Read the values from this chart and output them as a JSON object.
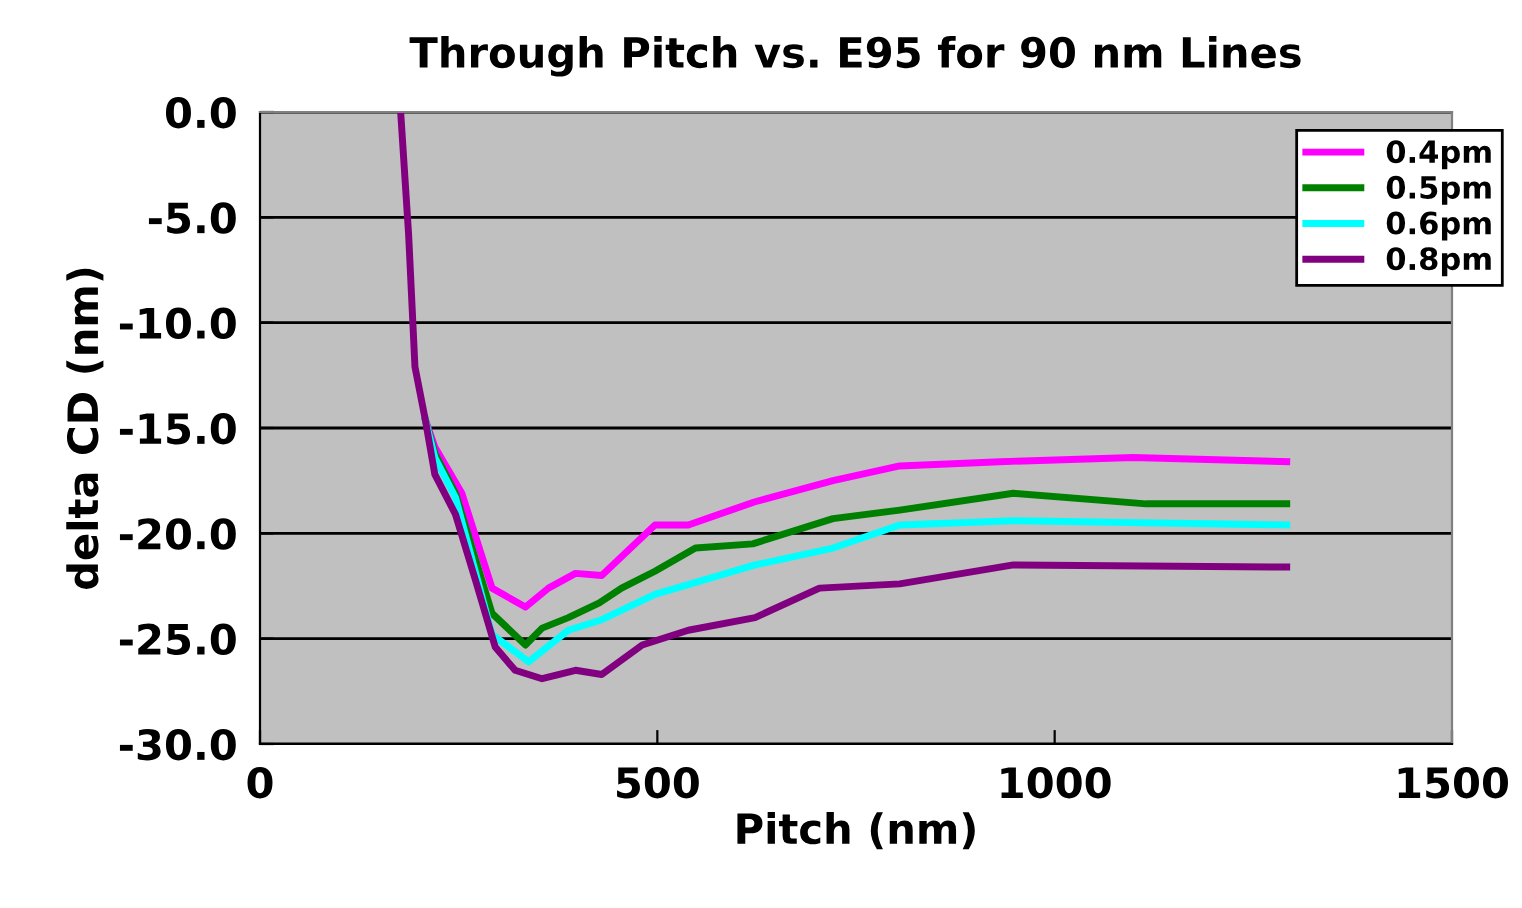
{
  "chart_data": {
    "type": "line",
    "title": "Through Pitch vs. E95 for 90 nm Lines",
    "xlabel": "Pitch (nm)",
    "ylabel": "delta CD (nm)",
    "xlim": [
      0,
      1500
    ],
    "xticks": [
      0,
      500,
      1000,
      1500
    ],
    "ylim": [
      -30,
      0
    ],
    "yticks": [
      {
        "value": -30,
        "label": "-30.0"
      },
      {
        "value": -25,
        "label": "-25.0"
      },
      {
        "value": -20,
        "label": "-20.0"
      },
      {
        "value": -15,
        "label": "-15.0"
      },
      {
        "value": -10,
        "label": "-10.0"
      },
      {
        "value": -5,
        "label": "-5.0"
      },
      {
        "value": 0,
        "label": "0.0"
      }
    ],
    "grid": "y",
    "legend": "top right",
    "marker": "none",
    "line_style": "solid",
    "series": [
      {
        "name": "0.4pm",
        "color": "#ff00ff",
        "x": [
          208,
          220,
          254,
          292,
          334,
          363,
          397,
          430,
          497,
          539,
          623,
          721,
          805,
          931,
          1099,
          1292
        ],
        "values": [
          -14.6,
          -15.9,
          -18.1,
          -22.6,
          -23.5,
          -22.6,
          -21.9,
          -22.0,
          -19.6,
          -19.6,
          -18.5,
          -17.5,
          -16.8,
          -16.6,
          -16.4,
          -16.6
        ]
      },
      {
        "name": "0.5pm",
        "color": "#008000",
        "x": [
          208,
          220,
          246,
          292,
          334,
          355,
          388,
          427,
          455,
          497,
          548,
          620,
          721,
          805,
          948,
          1115,
          1292
        ],
        "values": [
          -14.6,
          -16.2,
          -18.1,
          -23.8,
          -25.3,
          -24.5,
          -24.0,
          -23.3,
          -22.6,
          -21.8,
          -20.7,
          -20.5,
          -19.3,
          -18.9,
          -18.1,
          -18.6,
          -18.6
        ]
      },
      {
        "name": "0.6pm",
        "color": "#00ffff",
        "x": [
          208,
          220,
          246,
          292,
          338,
          388,
          430,
          497,
          623,
          721,
          805,
          948,
          1292
        ],
        "values": [
          -14.6,
          -16.4,
          -18.3,
          -24.8,
          -26.1,
          -24.6,
          -24.1,
          -22.9,
          -21.5,
          -20.7,
          -19.6,
          -19.4,
          -19.6
        ]
      },
      {
        "name": "0.8pm",
        "color": "#800080",
        "x": [
          177,
          187,
          195,
          208,
          220,
          246,
          271,
          296,
          321,
          355,
          397,
          430,
          481,
          539,
          623,
          704,
          805,
          948,
          1292
        ],
        "values": [
          0,
          -5.8,
          -12.1,
          -14.6,
          -17.2,
          -19.1,
          -22.2,
          -25.4,
          -26.5,
          -26.9,
          -26.5,
          -26.7,
          -25.3,
          -24.6,
          -24.0,
          -22.6,
          -22.4,
          -21.5,
          -21.6
        ]
      }
    ]
  }
}
